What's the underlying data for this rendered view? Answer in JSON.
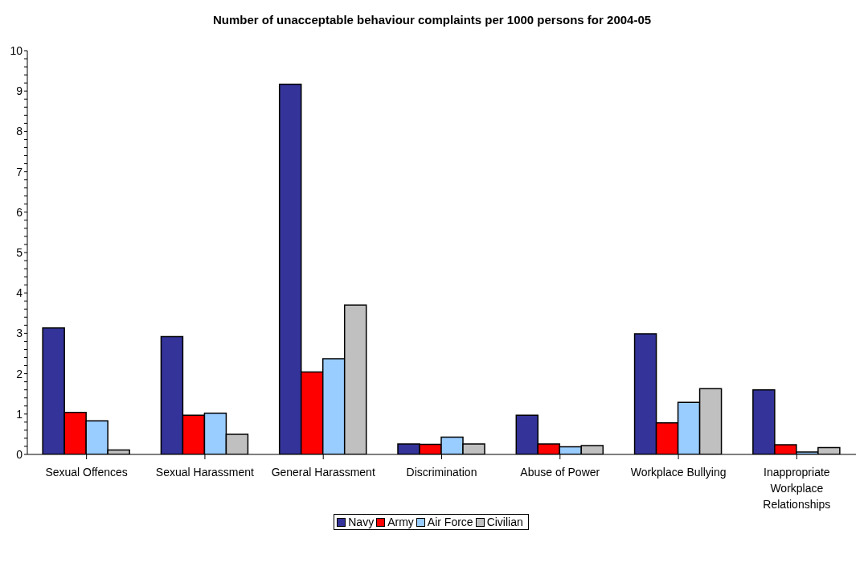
{
  "chart_data": {
    "type": "bar",
    "title": "Number of unacceptable behaviour complaints per 1000 persons for 2004-05",
    "categories": [
      "Sexual Offences",
      "Sexual Harassment",
      "General Harassment",
      "Discrimination",
      "Abuse of Power",
      "Workplace Bullying",
      "Inappropriate Workplace Relationships"
    ],
    "series": [
      {
        "name": "Navy",
        "color": "#333399",
        "values": [
          3.13,
          2.92,
          9.17,
          0.26,
          0.97,
          2.99,
          1.6
        ]
      },
      {
        "name": "Army",
        "color": "#ff0000",
        "values": [
          1.04,
          0.97,
          2.04,
          0.25,
          0.26,
          0.78,
          0.24
        ]
      },
      {
        "name": "Air Force",
        "color": "#99ccff",
        "values": [
          0.83,
          1.02,
          2.37,
          0.43,
          0.19,
          1.29,
          0.06
        ]
      },
      {
        "name": "Civilian",
        "color": "#c0c0c0",
        "values": [
          0.11,
          0.5,
          3.7,
          0.26,
          0.22,
          1.63,
          0.17
        ]
      }
    ],
    "ylim": [
      0,
      10
    ],
    "yticks": [
      0,
      {
        "value": 0.2,
        "label": null
      },
      {
        "value": 0.4,
        "label": null
      },
      {
        "value": 0.6,
        "label": null
      },
      {
        "value": 0.8,
        "label": null
      },
      1,
      {
        "value": 1.2,
        "label": null
      },
      {
        "value": 1.4,
        "label": null
      },
      {
        "value": 1.6,
        "label": null
      },
      {
        "value": 1.8,
        "label": null
      },
      2,
      {
        "value": 2.2,
        "label": null
      },
      {
        "value": 2.4,
        "label": null
      },
      {
        "value": 2.6,
        "label": null
      },
      {
        "value": 2.8,
        "label": null
      },
      3,
      {
        "value": 3.2,
        "label": null
      },
      {
        "value": 3.4,
        "label": null
      },
      {
        "value": 3.6,
        "label": null
      },
      {
        "value": 3.8,
        "label": null
      },
      4,
      {
        "value": 4.2,
        "label": null
      },
      {
        "value": 4.4,
        "label": null
      },
      {
        "value": 4.6,
        "label": null
      },
      {
        "value": 4.8,
        "label": null
      },
      5,
      {
        "value": 5.2,
        "label": null
      },
      {
        "value": 5.4,
        "label": null
      },
      {
        "value": 5.6,
        "label": null
      },
      {
        "value": 5.8,
        "label": null
      },
      6,
      {
        "value": 6.2,
        "label": null
      },
      {
        "value": 6.4,
        "label": null
      },
      {
        "value": 6.6,
        "label": null
      },
      {
        "value": 6.8,
        "label": null
      },
      7,
      {
        "value": 7.2,
        "label": null
      },
      {
        "value": 7.4,
        "label": null
      },
      {
        "value": 7.6,
        "label": null
      },
      {
        "value": 7.8,
        "label": null
      },
      8,
      {
        "value": 8.2,
        "label": null
      },
      {
        "value": 8.4,
        "label": null
      },
      {
        "value": 8.6,
        "label": null
      },
      {
        "value": 8.8,
        "label": null
      },
      9,
      {
        "value": 9.2,
        "label": null
      },
      {
        "value": 9.4,
        "label": null
      },
      {
        "value": 9.6,
        "label": null
      },
      {
        "value": 9.8,
        "label": null
      },
      10
    ],
    "grid": false,
    "legend": "bottom"
  }
}
